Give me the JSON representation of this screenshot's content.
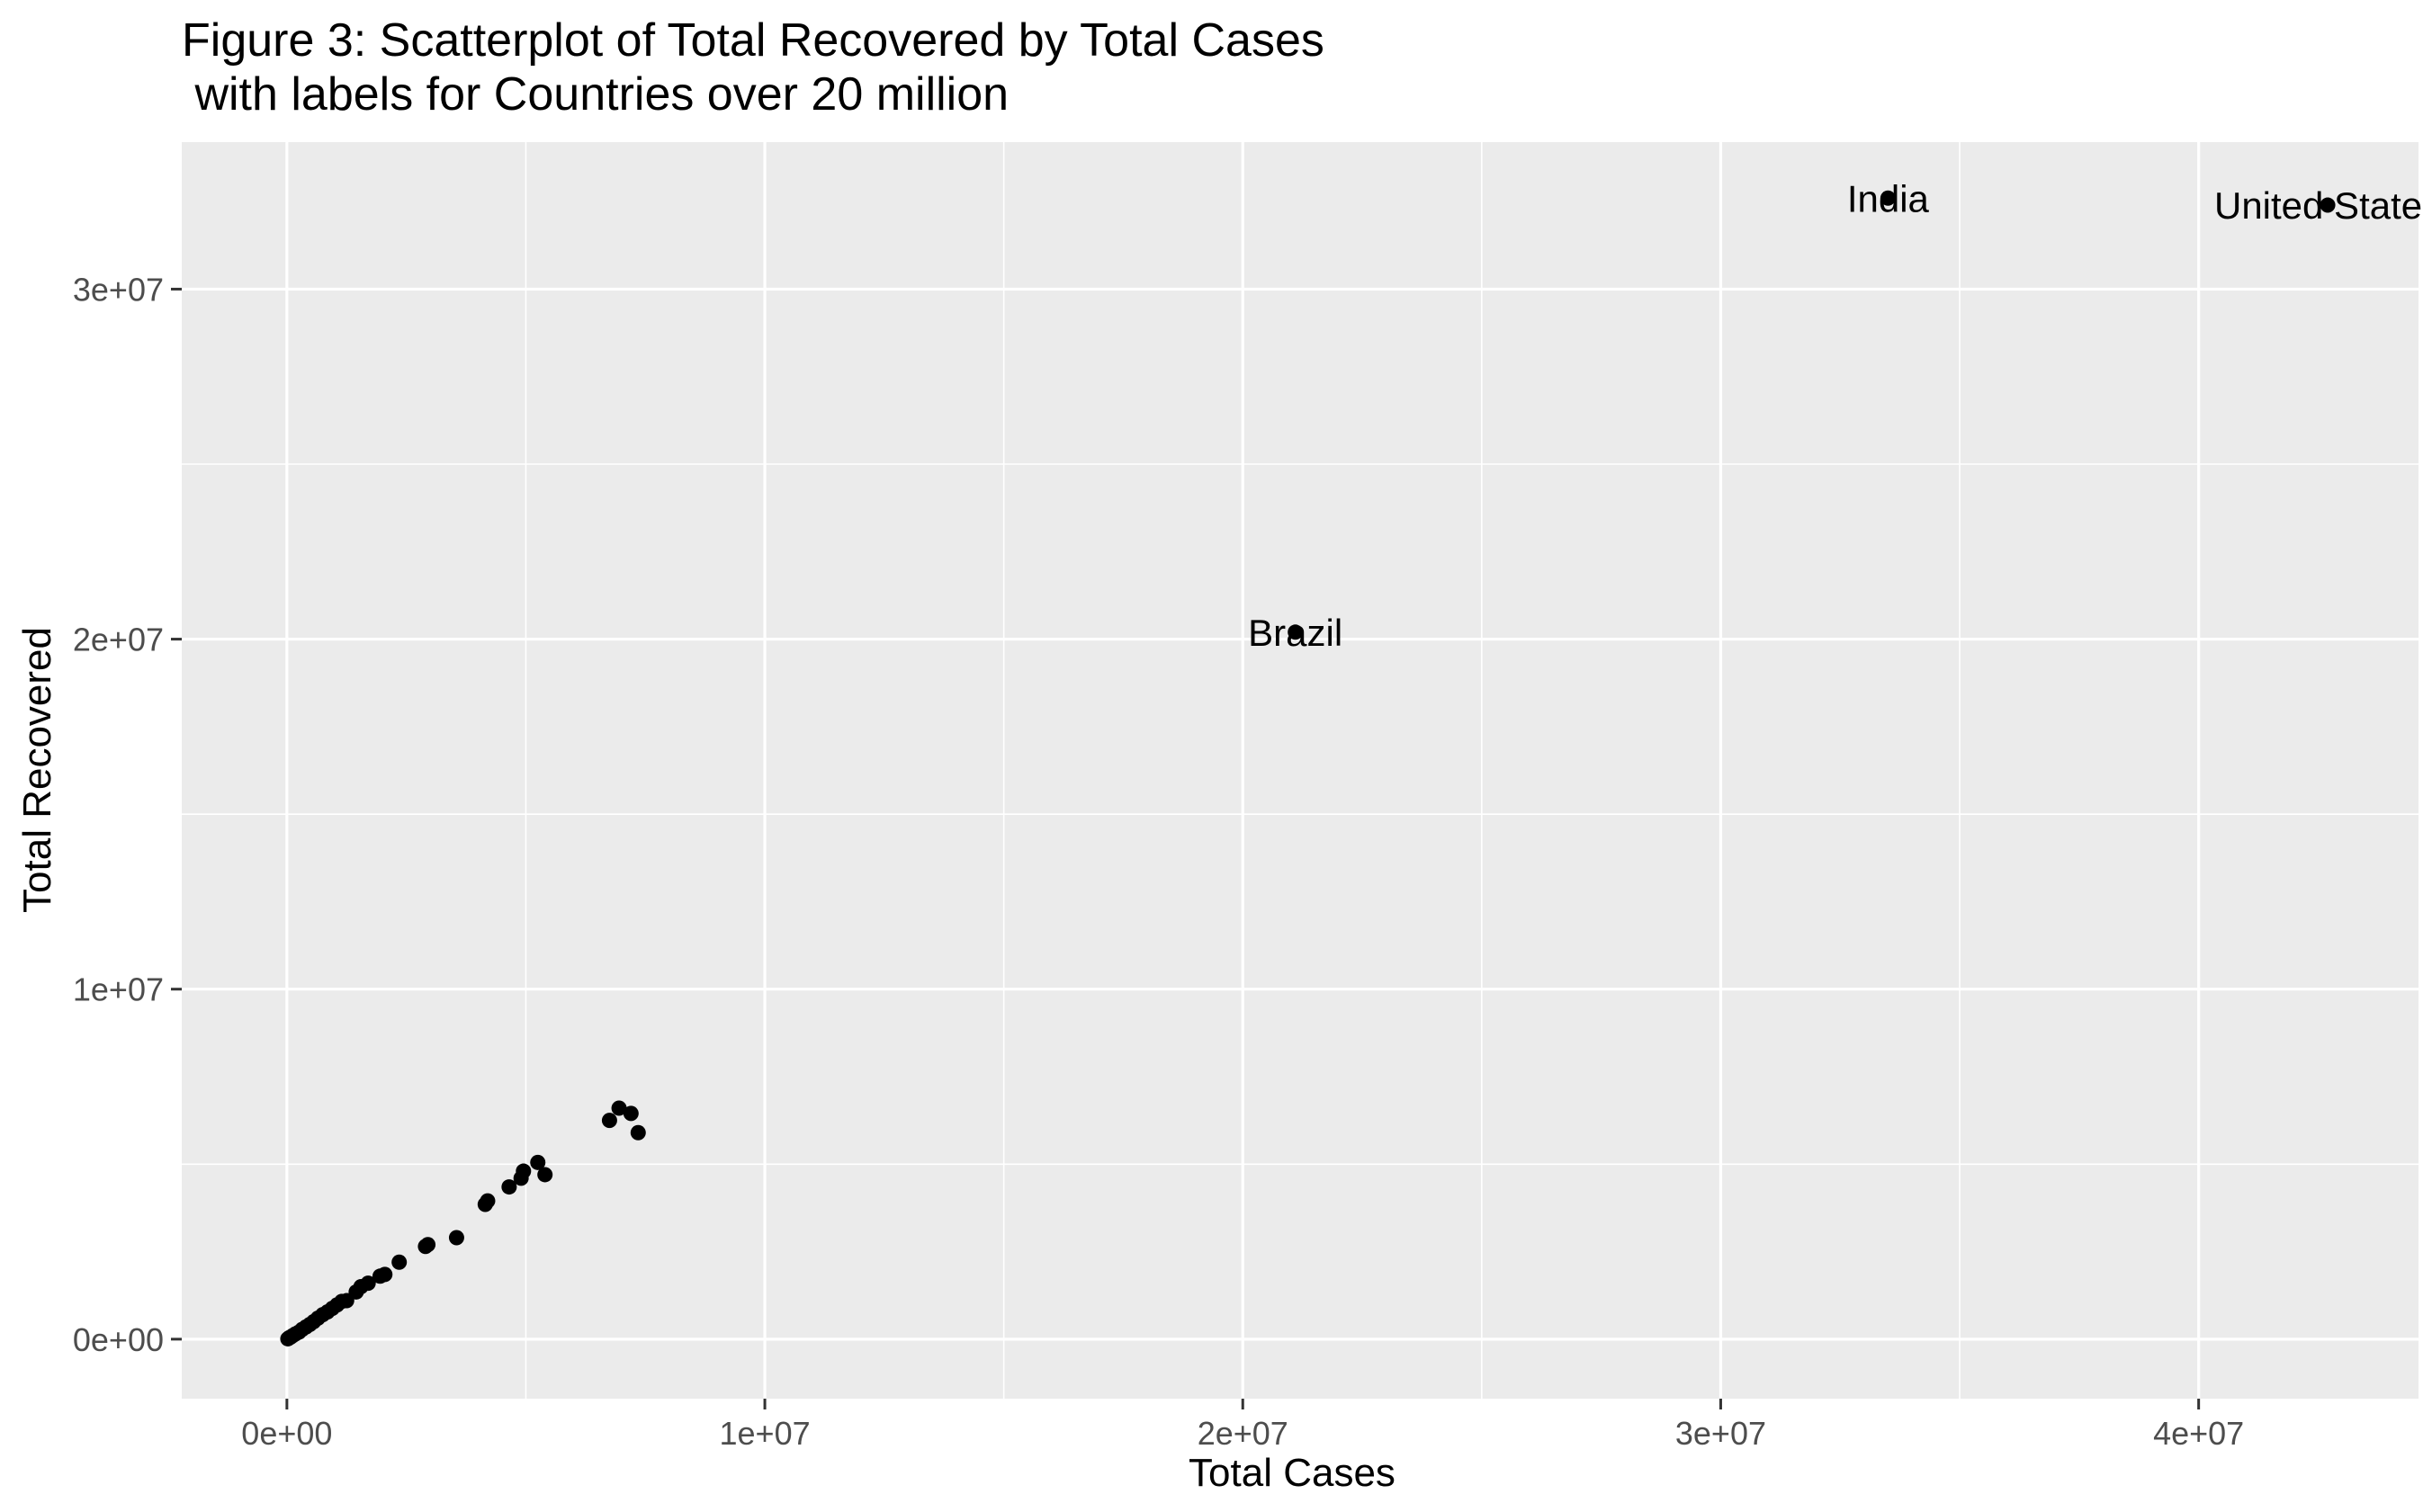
{
  "chart_data": {
    "type": "scatter",
    "title": "Figure 3: Scatterplot of Total Recovered by Total Cases",
    "subtitle": " with labels for Countries over 20 million",
    "xlabel": "Total Cases",
    "ylabel": "Total Recovered",
    "xlim": [
      -2200000,
      44600000
    ],
    "ylim": [
      -1700000,
      34200000
    ],
    "x_ticks": [
      0,
      10000000,
      20000000,
      30000000,
      40000000
    ],
    "x_tick_labels": [
      "0e+00",
      "1e+07",
      "2e+07",
      "3e+07",
      "4e+07"
    ],
    "y_ticks": [
      0,
      10000000,
      20000000,
      30000000
    ],
    "y_tick_labels": [
      "0e+00",
      "1e+07",
      "2e+07",
      "3e+07"
    ],
    "grid": true,
    "panel_background": "#ebebeb",
    "grid_color": "#ffffff",
    "point_color": "#000000",
    "points": [
      {
        "x": 20000,
        "y": 10000
      },
      {
        "x": 50000,
        "y": 40000
      },
      {
        "x": 80000,
        "y": 60000
      },
      {
        "x": 120000,
        "y": 100000
      },
      {
        "x": 180000,
        "y": 150000
      },
      {
        "x": 250000,
        "y": 200000
      },
      {
        "x": 320000,
        "y": 280000
      },
      {
        "x": 400000,
        "y": 350000
      },
      {
        "x": 480000,
        "y": 420000
      },
      {
        "x": 560000,
        "y": 500000
      },
      {
        "x": 650000,
        "y": 600000
      },
      {
        "x": 750000,
        "y": 700000
      },
      {
        "x": 850000,
        "y": 780000
      },
      {
        "x": 950000,
        "y": 880000
      },
      {
        "x": 1050000,
        "y": 980000
      },
      {
        "x": 1150000,
        "y": 1080000
      },
      {
        "x": 1250000,
        "y": 1100000
      },
      {
        "x": 1450000,
        "y": 1350000
      },
      {
        "x": 1550000,
        "y": 1500000
      },
      {
        "x": 1700000,
        "y": 1600000
      },
      {
        "x": 1950000,
        "y": 1800000
      },
      {
        "x": 2050000,
        "y": 1850000
      },
      {
        "x": 2350000,
        "y": 2200000
      },
      {
        "x": 2900000,
        "y": 2650000
      },
      {
        "x": 2950000,
        "y": 2700000
      },
      {
        "x": 3550000,
        "y": 2900000
      },
      {
        "x": 4150000,
        "y": 3850000
      },
      {
        "x": 4200000,
        "y": 3950000
      },
      {
        "x": 4650000,
        "y": 4350000
      },
      {
        "x": 4900000,
        "y": 4600000
      },
      {
        "x": 4950000,
        "y": 4800000
      },
      {
        "x": 5250000,
        "y": 5050000
      },
      {
        "x": 5400000,
        "y": 4700000
      },
      {
        "x": 6750000,
        "y": 6250000
      },
      {
        "x": 6950000,
        "y": 6600000
      },
      {
        "x": 7200000,
        "y": 6450000
      },
      {
        "x": 7350000,
        "y": 5900000
      },
      {
        "x": 21100000,
        "y": 20200000,
        "label": "Brazil"
      },
      {
        "x": 33500000,
        "y": 32600000,
        "label": "India"
      },
      {
        "x": 42700000,
        "y": 32400000,
        "label": "United States"
      }
    ]
  }
}
